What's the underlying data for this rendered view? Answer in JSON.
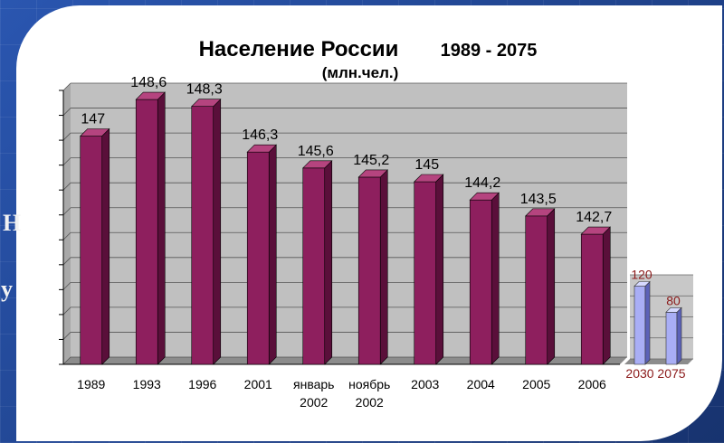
{
  "side_fragments": [
    "Н",
    "у"
  ],
  "chart_data": {
    "type": "bar",
    "title": "Население России",
    "title_years": "1989 - 2075",
    "subtitle": "(млн.чел.)",
    "xlabel": "",
    "ylabel": "",
    "ylim": [
      137,
      149
    ],
    "categories": [
      [
        "1989"
      ],
      [
        "1993"
      ],
      [
        "1996"
      ],
      [
        "2001"
      ],
      [
        "январь",
        "2002"
      ],
      [
        "ноябрь",
        "2002"
      ],
      [
        "2003"
      ],
      [
        "2004"
      ],
      [
        "2005"
      ],
      [
        "2006"
      ]
    ],
    "values": [
      147,
      148.6,
      148.3,
      146.3,
      145.6,
      145.2,
      145,
      144.2,
      143.5,
      142.7
    ],
    "labels": [
      "147",
      "148,6",
      "148,3",
      "146,3",
      "145,6",
      "145,2",
      "145",
      "144,2",
      "143,5",
      "142,7"
    ],
    "forecast": {
      "categories": [
        "2030",
        "2075"
      ],
      "values": [
        120,
        80
      ],
      "labels": [
        "120",
        "80"
      ],
      "ylim": [
        0,
        200
      ]
    },
    "colors": {
      "bar": "#8e1f5e",
      "bar_side": "#5a0f3a",
      "bar_top": "#b5447f",
      "forecast_bar": "#a9aef5",
      "forecast_side": "#5c62b8",
      "plot_wall": "#c0c0c0",
      "plot_floor": "#8c8c8c",
      "forecast_label": "#8b1a1a"
    },
    "grid": true
  }
}
